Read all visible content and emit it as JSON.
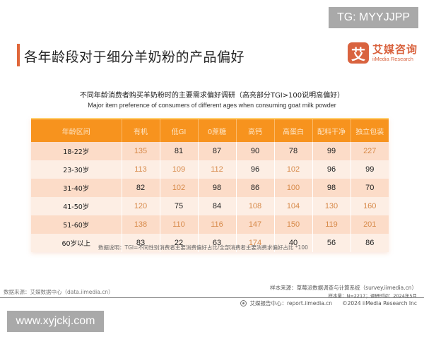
{
  "watermark_top": "TG: MYYJJPP",
  "watermark_bottom": "www.xyjckj.com",
  "header": {
    "title": "各年龄段对于细分羊奶粉的产品偏好",
    "logo_mark": "艾",
    "logo_cn": "艾媒咨询",
    "logo_en": "iiMedia Research",
    "accent_color": "#e0673a"
  },
  "chart_data": {
    "type": "table",
    "title": "不同年龄消费者购买羊奶粉时的主要需求偏好调研（高亮部分TGI>100说明高偏好）",
    "subtitle": "Major item preference of consumers of different ages when consuming goat milk powder",
    "columns": [
      "年龄区间",
      "有机",
      "低GI",
      "0蔗糖",
      "高钙",
      "高蛋白",
      "配料干净",
      "独立包装"
    ],
    "rows": [
      {
        "age": "18-22岁",
        "values": [
          135,
          81,
          87,
          90,
          78,
          99,
          227
        ]
      },
      {
        "age": "23-30岁",
        "values": [
          113,
          109,
          112,
          96,
          102,
          96,
          99
        ]
      },
      {
        "age": "31-40岁",
        "values": [
          82,
          102,
          98,
          86,
          100,
          98,
          70
        ]
      },
      {
        "age": "41-50岁",
        "values": [
          120,
          75,
          84,
          108,
          104,
          130,
          160
        ]
      },
      {
        "age": "51-60岁",
        "values": [
          138,
          110,
          116,
          147,
          150,
          119,
          201
        ]
      },
      {
        "age": "60岁以上",
        "values": [
          83,
          22,
          63,
          174,
          40,
          56,
          86
        ]
      }
    ],
    "highlight_rule": "TGI>100 (highlighted; 100 also shown highlighted in 31-40岁 高蛋白)",
    "header_color": "#f7931e",
    "highlight_color": "#d78a4a",
    "row_colors": [
      "#fcdcc8",
      "#fdeee4"
    ]
  },
  "note": "数据说明：TGI=不同性别消费者主要消费偏好占比/全部消费者主要消费求偏好占比 *100",
  "footer": {
    "source_left": "数据来源：艾媒数据中心（data.iimedia.cn）",
    "source_right": "样本来源：草莓派数据调查与计算系统（survey.iimedia.cn）",
    "sample_info": "样本量：N=2217；调研时间：2024年5月",
    "report_center": "艾媒报告中心：report.iimedia.cn",
    "copyright": "©2024  iiMedia Research  Inc"
  }
}
